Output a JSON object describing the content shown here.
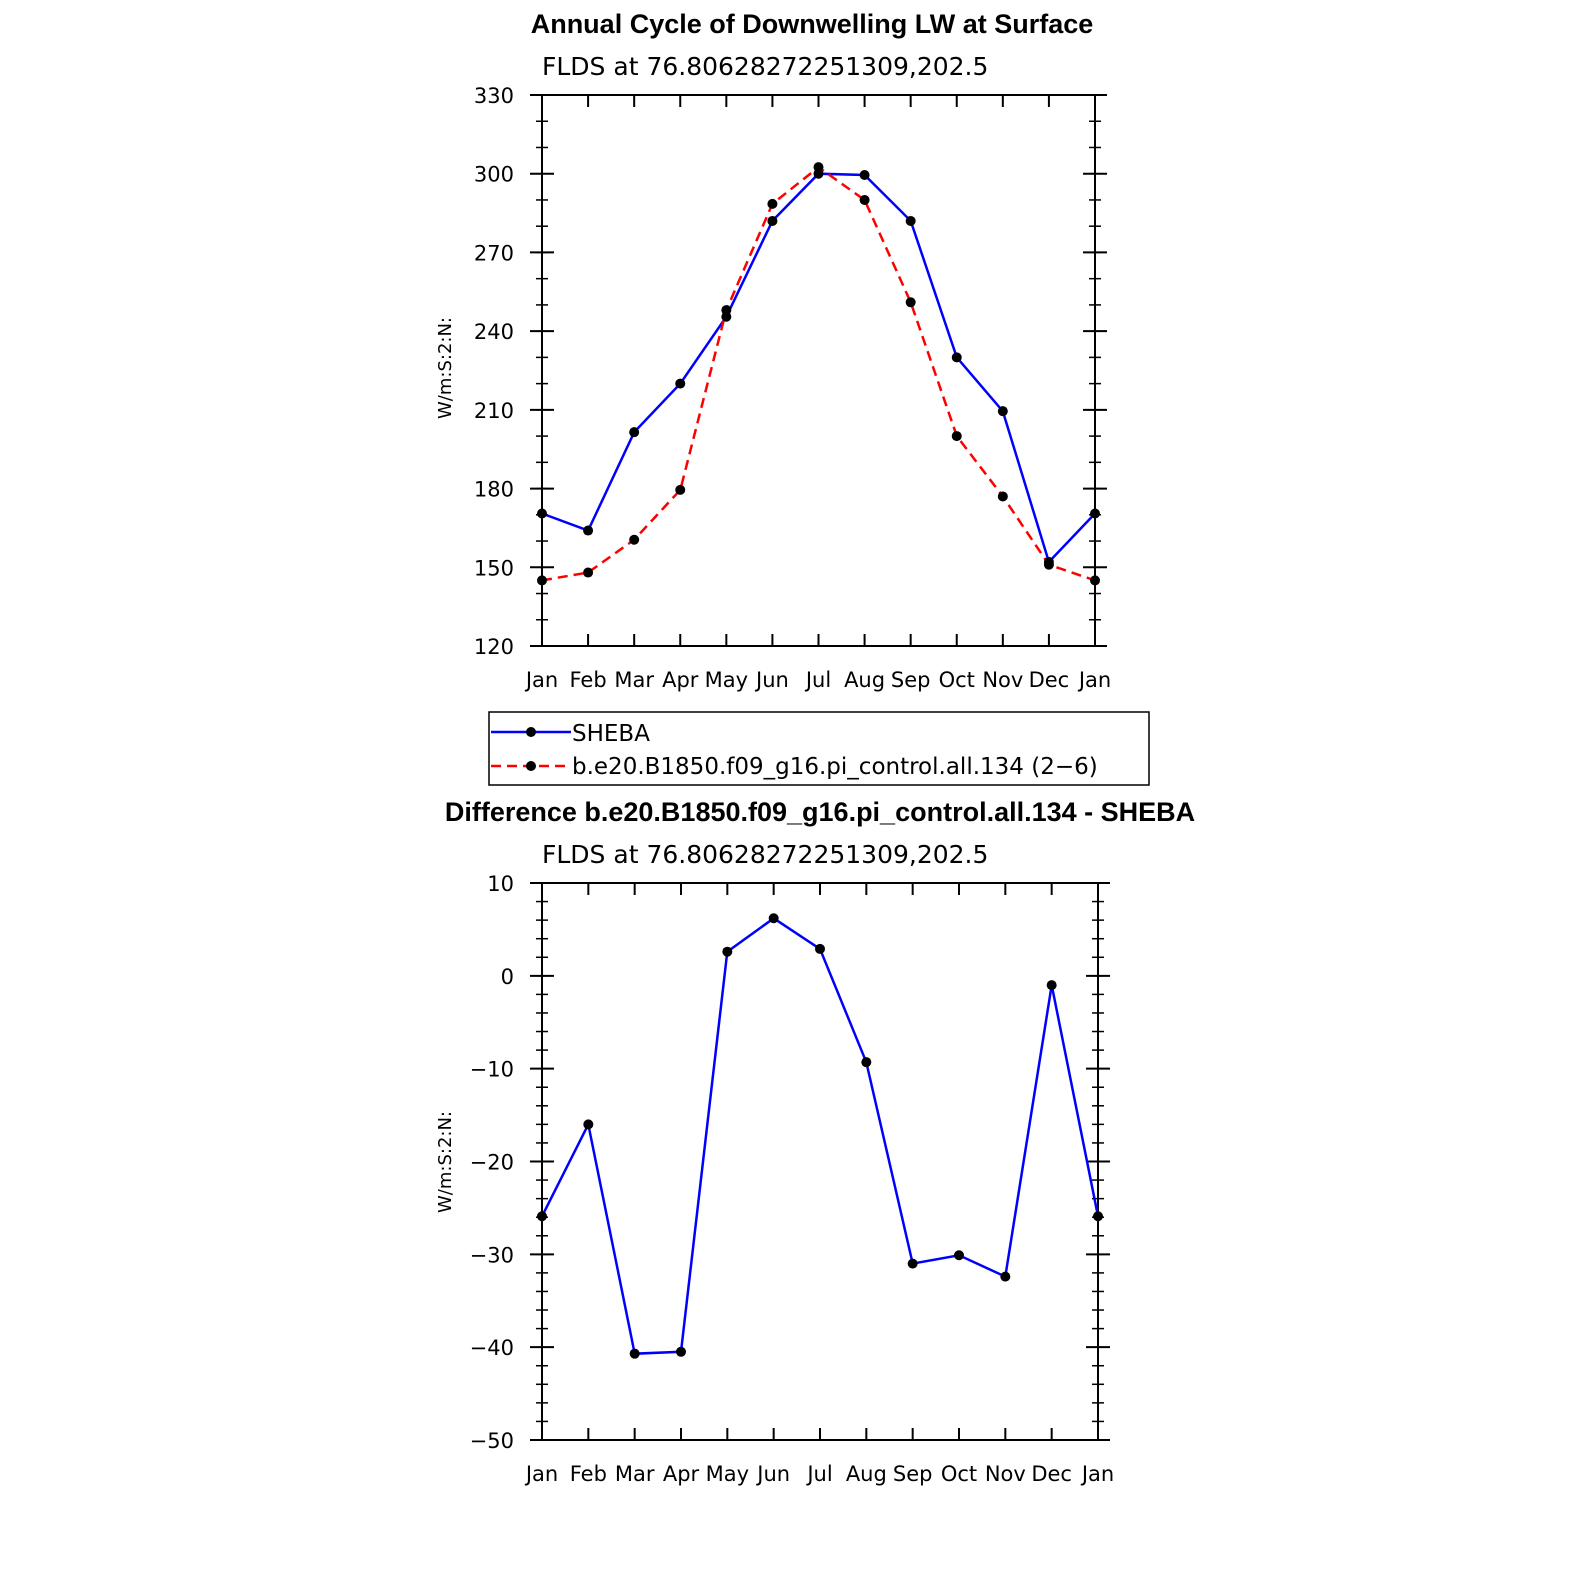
{
  "chart_data": [
    {
      "type": "line",
      "title": "Annual Cycle of Downwelling LW at Surface",
      "subtitle": "FLDS at 76.80628272251309,202.5",
      "xlabel": "",
      "ylabel": "W/m:S:2:N:",
      "categories": [
        "Jan",
        "Feb",
        "Mar",
        "Apr",
        "May",
        "Jun",
        "Jul",
        "Aug",
        "Sep",
        "Oct",
        "Nov",
        "Dec",
        "Jan"
      ],
      "ylim": [
        120,
        330
      ],
      "yticks": [
        "120",
        "150",
        "180",
        "210",
        "240",
        "270",
        "300",
        "330"
      ],
      "series": [
        {
          "name": "SHEBA",
          "color": "#0000ff",
          "dash": "solid",
          "values": [
            170.5,
            164,
            201.5,
            220,
            245.5,
            282,
            300,
            299.5,
            282,
            230,
            209.5,
            152,
            170.5
          ]
        },
        {
          "name": "b.e20.B1850.f09_g16.pi_control.all.134 (2−6)",
          "color": "#ff0000",
          "dash": "dashed",
          "values": [
            145,
            148,
            160.5,
            179.5,
            248,
            288.5,
            302.5,
            290,
            251,
            200,
            177,
            151,
            145
          ]
        }
      ],
      "legend": {
        "position": "below",
        "entries": [
          "SHEBA",
          "b.e20.B1850.f09_g16.pi_control.all.134 (2−6)"
        ]
      }
    },
    {
      "type": "line",
      "title": "Difference b.e20.B1850.f09_g16.pi_control.all.134 - SHEBA",
      "subtitle": "FLDS at 76.80628272251309,202.5",
      "xlabel": "",
      "ylabel": "W/m:S:2:N:",
      "categories": [
        "Jan",
        "Feb",
        "Mar",
        "Apr",
        "May",
        "Jun",
        "Jul",
        "Aug",
        "Sep",
        "Oct",
        "Nov",
        "Dec",
        "Jan"
      ],
      "ylim": [
        -50,
        10
      ],
      "yticks": [
        "−50",
        "−40",
        "−30",
        "−20",
        "−10",
        "0",
        "10"
      ],
      "series": [
        {
          "name": "Difference",
          "color": "#0000ff",
          "dash": "solid",
          "values": [
            -25.9,
            -16,
            -40.7,
            -40.5,
            2.6,
            6.2,
            2.9,
            -9.3,
            -31,
            -30.1,
            -32.4,
            -1,
            -25.9
          ]
        }
      ]
    }
  ],
  "colors": {
    "marker": "#000000",
    "axis": "#000000"
  }
}
